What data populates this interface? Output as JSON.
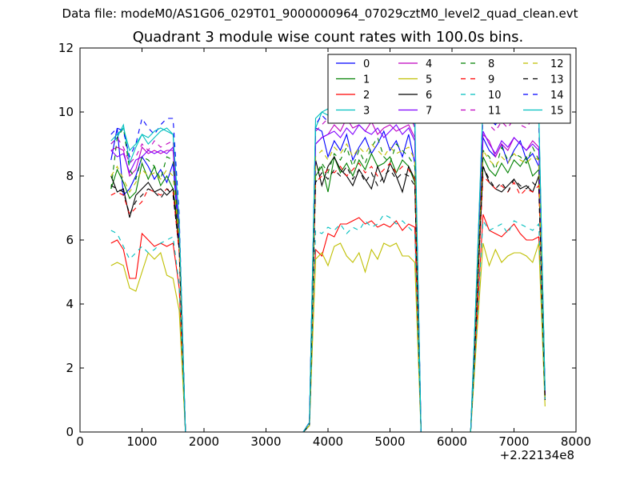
{
  "suptitle": "Data file: modeM0/AS1G06_029T01_9000000964_07029cztM0_level2_quad_clean.evt",
  "chart_data": {
    "type": "line",
    "title": "Quadrant 3 module wise count rates with 100.0s bins.",
    "xlabel": "",
    "ylabel": "",
    "x_offset_label": "+2.22134e8",
    "xlim": [
      0,
      8000
    ],
    "ylim": [
      0,
      12
    ],
    "xticks": [
      0,
      1000,
      2000,
      3000,
      4000,
      5000,
      6000,
      7000,
      8000
    ],
    "yticks": [
      0,
      2,
      4,
      6,
      8,
      10,
      12
    ],
    "grid": false,
    "legend_position": "top-right",
    "legend_columns": 4,
    "x": [
      500,
      600,
      700,
      800,
      900,
      1000,
      1100,
      1200,
      1300,
      1400,
      1500,
      1600,
      1700,
      1800,
      1900,
      2000,
      2100,
      2200,
      2300,
      2400,
      2500,
      2600,
      2700,
      2800,
      2900,
      3000,
      3100,
      3200,
      3300,
      3400,
      3500,
      3600,
      3700,
      3800,
      3900,
      4000,
      4100,
      4200,
      4300,
      4400,
      4500,
      4600,
      4700,
      4800,
      4900,
      5000,
      5100,
      5200,
      5300,
      5400,
      5500,
      5600,
      5700,
      5800,
      5900,
      6000,
      6100,
      6200,
      6300,
      6400,
      6500,
      6600,
      6700,
      6800,
      6900,
      7000,
      7100,
      7200,
      7300,
      7400,
      7500
    ],
    "series": [
      {
        "name": "0",
        "color": "#0000ff",
        "dash": "solid",
        "values": [
          8.5,
          9.5,
          7.4,
          7.6,
          8.0,
          8.6,
          8.3,
          7.9,
          8.2,
          7.8,
          8.4,
          6.0,
          0,
          0,
          0,
          0,
          0,
          0,
          0,
          0,
          0,
          0,
          0,
          0,
          0,
          0,
          0,
          0,
          0,
          0,
          0,
          0,
          0.3,
          9.5,
          9.4,
          8.6,
          9.1,
          8.8,
          9.3,
          8.5,
          8.9,
          9.2,
          8.7,
          9.0,
          9.4,
          8.8,
          9.1,
          8.6,
          9.3,
          8.4,
          0,
          0,
          0,
          0,
          0,
          0,
          0,
          0,
          0,
          4.5,
          9.2,
          8.8,
          8.6,
          9.0,
          8.4,
          8.8,
          9.1,
          8.5,
          8.7,
          8.3,
          1.2
        ]
      },
      {
        "name": "1",
        "color": "#008000",
        "dash": "solid",
        "values": [
          7.6,
          8.2,
          7.8,
          7.3,
          7.5,
          8.4,
          7.9,
          8.3,
          7.7,
          8.0,
          7.6,
          6.2,
          0,
          0,
          0,
          0,
          0,
          0,
          0,
          0,
          0,
          0,
          0,
          0,
          0,
          0,
          0,
          0,
          0,
          0,
          0,
          0,
          0.2,
          8.0,
          8.3,
          7.5,
          8.6,
          8.1,
          8.4,
          8.0,
          8.5,
          8.2,
          8.7,
          8.3,
          8.4,
          8.6,
          8.1,
          8.5,
          8.3,
          7.8,
          0,
          0,
          0,
          0,
          0,
          0,
          0,
          0,
          0,
          4.2,
          8.6,
          8.2,
          8.0,
          8.4,
          8.1,
          8.5,
          8.3,
          8.6,
          8.0,
          8.2,
          1.1
        ]
      },
      {
        "name": "2",
        "color": "#ff0000",
        "dash": "solid",
        "values": [
          5.9,
          6.0,
          5.7,
          4.8,
          4.8,
          6.2,
          6.0,
          5.8,
          5.9,
          5.8,
          5.9,
          4.5,
          0,
          0,
          0,
          0,
          0,
          0,
          0,
          0,
          0,
          0,
          0,
          0,
          0,
          0,
          0,
          0,
          0,
          0,
          0,
          0,
          0.2,
          5.7,
          5.5,
          6.2,
          6.1,
          6.5,
          6.5,
          6.6,
          6.7,
          6.5,
          6.6,
          6.4,
          6.5,
          6.4,
          6.6,
          6.3,
          6.5,
          6.4,
          0,
          0,
          0,
          0,
          0,
          0,
          0,
          0,
          0,
          3.4,
          6.8,
          6.3,
          6.2,
          6.1,
          6.3,
          6.5,
          6.2,
          6.0,
          6.0,
          6.1,
          1.0
        ]
      },
      {
        "name": "3",
        "color": "#00bfbf",
        "dash": "solid",
        "values": [
          9.0,
          9.2,
          9.6,
          8.4,
          8.9,
          9.3,
          9.0,
          9.2,
          9.4,
          9.5,
          9.3,
          6.4,
          0,
          0,
          0,
          0,
          0,
          0,
          0,
          0,
          0,
          0,
          0,
          0,
          0,
          0,
          0,
          0,
          0,
          0,
          0,
          0,
          0.3,
          9.5,
          10.0,
          10.1,
          9.8,
          10.0,
          10.2,
          10.0,
          10.1,
          9.9,
          10.3,
          9.8,
          10.7,
          10.0,
          10.2,
          9.9,
          10.1,
          9.6,
          0,
          0,
          0,
          0,
          0,
          0,
          0,
          0,
          0,
          4.8,
          10.2,
          10.0,
          9.8,
          10.1,
          9.9,
          10.4,
          10.2,
          10.0,
          10.3,
          9.9,
          1.3
        ]
      },
      {
        "name": "4",
        "color": "#bf00bf",
        "dash": "solid",
        "values": [
          8.8,
          8.9,
          8.8,
          8.0,
          8.2,
          8.9,
          8.7,
          8.8,
          8.7,
          8.8,
          8.8,
          6.3,
          0,
          0,
          0,
          0,
          0,
          0,
          0,
          0,
          0,
          0,
          0,
          0,
          0,
          0,
          0,
          0,
          0,
          0,
          0,
          0,
          0.3,
          9.0,
          9.2,
          9.3,
          9.6,
          9.4,
          9.8,
          9.5,
          9.6,
          9.4,
          9.7,
          9.3,
          9.5,
          9.6,
          9.4,
          9.5,
          9.6,
          9.2,
          0,
          0,
          0,
          0,
          0,
          0,
          0,
          0,
          0,
          4.6,
          9.3,
          9.1,
          8.6,
          9.0,
          8.8,
          9.2,
          9.0,
          8.8,
          9.1,
          8.9,
          1.2
        ]
      },
      {
        "name": "5",
        "color": "#bfbf00",
        "dash": "solid",
        "values": [
          5.2,
          5.3,
          5.2,
          4.5,
          4.4,
          5.0,
          5.6,
          5.4,
          5.6,
          4.9,
          4.8,
          3.8,
          0,
          0,
          0,
          0,
          0,
          0,
          0,
          0,
          0,
          0,
          0,
          0,
          0,
          0,
          0,
          0,
          0,
          0,
          0,
          0,
          0.2,
          5.4,
          5.6,
          5.2,
          5.8,
          5.9,
          5.5,
          5.3,
          5.6,
          5.0,
          5.7,
          5.4,
          5.9,
          5.8,
          5.9,
          5.5,
          5.5,
          5.3,
          0,
          0,
          0,
          0,
          0,
          0,
          0,
          0,
          0,
          3.0,
          5.9,
          5.2,
          5.7,
          5.3,
          5.5,
          5.6,
          5.6,
          5.5,
          5.3,
          5.9,
          0.8
        ]
      },
      {
        "name": "6",
        "color": "#000000",
        "dash": "solid",
        "values": [
          8.0,
          7.5,
          7.6,
          6.7,
          7.4,
          7.6,
          7.8,
          7.5,
          7.6,
          7.4,
          7.6,
          5.8,
          0,
          0,
          0,
          0,
          0,
          0,
          0,
          0,
          0,
          0,
          0,
          0,
          0,
          0,
          0,
          0,
          0,
          0,
          0,
          0,
          0.2,
          8.5,
          7.7,
          8.3,
          8.6,
          8.2,
          8.0,
          7.7,
          8.2,
          7.9,
          7.6,
          8.3,
          7.8,
          8.4,
          8.0,
          7.5,
          8.3,
          7.9,
          0,
          0,
          0,
          0,
          0,
          0,
          0,
          0,
          0,
          4.0,
          8.3,
          7.8,
          7.6,
          7.5,
          7.7,
          7.9,
          7.6,
          7.7,
          7.5,
          8.0,
          1.0
        ]
      },
      {
        "name": "7",
        "color": "#7f00ff",
        "dash": "solid",
        "values": [
          8.8,
          8.6,
          8.7,
          8.1,
          8.5,
          8.6,
          8.8,
          8.7,
          8.8,
          8.7,
          8.9,
          6.2,
          0,
          0,
          0,
          0,
          0,
          0,
          0,
          0,
          0,
          0,
          0,
          0,
          0,
          0,
          0,
          0,
          0,
          0,
          0,
          0,
          0.3,
          9.0,
          9.2,
          9.3,
          9.4,
          9.2,
          9.5,
          9.3,
          9.6,
          9.4,
          9.3,
          9.5,
          9.2,
          9.4,
          9.6,
          9.3,
          9.5,
          9.1,
          0,
          0,
          0,
          0,
          0,
          0,
          0,
          0,
          0,
          4.6,
          9.4,
          9.0,
          8.7,
          9.1,
          8.9,
          9.2,
          9.0,
          8.8,
          9.0,
          8.8,
          1.2
        ]
      },
      {
        "name": "8",
        "color": "#008000",
        "dash": "dashed",
        "values": [
          7.6,
          9.2,
          9.5,
          8.2,
          7.9,
          8.6,
          8.5,
          8.3,
          7.9,
          8.6,
          8.5,
          6.2,
          0,
          0,
          0,
          0,
          0,
          0,
          0,
          0,
          0,
          0,
          0,
          0,
          0,
          0,
          0,
          0,
          0,
          0,
          0,
          0,
          0.2,
          8.0,
          8.4,
          8.1,
          8.7,
          8.5,
          8.9,
          8.3,
          8.8,
          8.4,
          8.9,
          9.2,
          8.6,
          8.4,
          9.0,
          8.8,
          8.6,
          8.3,
          0,
          0,
          0,
          0,
          0,
          0,
          0,
          0,
          0,
          4.3,
          8.8,
          8.6,
          8.2,
          8.9,
          8.5,
          8.7,
          8.6,
          8.4,
          8.9,
          8.5,
          1.1
        ]
      },
      {
        "name": "9",
        "color": "#ff0000",
        "dash": "dashed",
        "values": [
          7.4,
          7.5,
          7.4,
          6.8,
          7.0,
          7.2,
          7.6,
          7.5,
          7.4,
          7.6,
          7.5,
          5.6,
          0,
          0,
          0,
          0,
          0,
          0,
          0,
          0,
          0,
          0,
          0,
          0,
          0,
          0,
          0,
          0,
          0,
          0,
          0,
          0,
          0.2,
          7.8,
          8.0,
          8.2,
          8.1,
          8.3,
          8.0,
          8.2,
          8.4,
          8.1,
          8.3,
          8.0,
          8.2,
          8.4,
          8.1,
          8.3,
          8.2,
          7.9,
          0,
          0,
          0,
          0,
          0,
          0,
          0,
          0,
          0,
          3.9,
          8.0,
          7.8,
          7.6,
          7.7,
          7.5,
          7.8,
          7.4,
          7.6,
          7.5,
          7.7,
          1.0
        ]
      },
      {
        "name": "10",
        "color": "#00bfbf",
        "dash": "dashed",
        "values": [
          6.3,
          6.2,
          5.8,
          5.4,
          5.6,
          5.8,
          5.6,
          5.7,
          5.9,
          6.0,
          6.1,
          4.6,
          0,
          0,
          0,
          0,
          0,
          0,
          0,
          0,
          0,
          0,
          0,
          0,
          0,
          0,
          0,
          0,
          0,
          0,
          0,
          0,
          0.2,
          6.3,
          6.2,
          6.4,
          6.3,
          6.5,
          6.2,
          6.4,
          6.3,
          6.6,
          6.4,
          6.5,
          6.8,
          6.7,
          6.5,
          6.6,
          6.4,
          6.2,
          0,
          0,
          0,
          0,
          0,
          0,
          0,
          0,
          0,
          3.3,
          6.6,
          6.3,
          6.4,
          6.5,
          6.2,
          6.6,
          6.5,
          6.4,
          6.3,
          6.5,
          1.0
        ]
      },
      {
        "name": "11",
        "color": "#bf00bf",
        "dash": "dashed",
        "values": [
          9.0,
          9.2,
          8.9,
          8.4,
          8.6,
          9.0,
          8.8,
          9.1,
          8.9,
          9.0,
          9.1,
          6.5,
          0,
          0,
          0,
          0,
          0,
          0,
          0,
          0,
          0,
          0,
          0,
          0,
          0,
          0,
          0,
          0,
          0,
          0,
          0,
          0,
          0.3,
          9.4,
          9.6,
          9.8,
          9.7,
          9.9,
          9.6,
          10.0,
          9.8,
          9.9,
          10.6,
          9.7,
          10.1,
          9.8,
          9.9,
          9.7,
          10.0,
          9.5,
          0,
          0,
          0,
          0,
          0,
          0,
          0,
          0,
          0,
          4.7,
          9.9,
          9.6,
          9.4,
          9.7,
          9.5,
          9.8,
          9.6,
          9.5,
          9.8,
          9.6,
          1.3
        ]
      },
      {
        "name": "12",
        "color": "#bfbf00",
        "dash": "dashed",
        "values": [
          8.0,
          8.3,
          7.9,
          7.5,
          7.8,
          8.2,
          8.0,
          8.1,
          7.9,
          8.2,
          8.0,
          6.0,
          0,
          0,
          0,
          0,
          0,
          0,
          0,
          0,
          0,
          0,
          0,
          0,
          0,
          0,
          0,
          0,
          0,
          0,
          0,
          0,
          0.2,
          8.6,
          8.8,
          8.5,
          8.9,
          8.7,
          9.0,
          8.6,
          8.9,
          8.7,
          9.0,
          8.8,
          8.6,
          8.9,
          8.7,
          8.8,
          8.9,
          8.5,
          0,
          0,
          0,
          0,
          0,
          0,
          0,
          0,
          0,
          4.3,
          8.8,
          8.5,
          8.3,
          8.6,
          8.4,
          8.7,
          8.5,
          8.4,
          8.6,
          8.5,
          1.1
        ]
      },
      {
        "name": "13",
        "color": "#000000",
        "dash": "dashed",
        "values": [
          7.7,
          7.6,
          7.5,
          6.8,
          7.2,
          7.4,
          7.6,
          7.5,
          7.3,
          7.6,
          7.4,
          5.7,
          0,
          0,
          0,
          0,
          0,
          0,
          0,
          0,
          0,
          0,
          0,
          0,
          0,
          0,
          0,
          0,
          0,
          0,
          0,
          0,
          0.2,
          7.8,
          8.1,
          7.9,
          8.2,
          8.0,
          8.3,
          7.9,
          8.2,
          7.8,
          8.1,
          7.7,
          8.0,
          8.2,
          7.9,
          8.1,
          8.0,
          7.7,
          0,
          0,
          0,
          0,
          0,
          0,
          0,
          0,
          0,
          3.9,
          8.3,
          7.9,
          7.6,
          7.8,
          7.5,
          7.9,
          7.7,
          7.6,
          7.8,
          7.6,
          1.0
        ]
      },
      {
        "name": "14",
        "color": "#0000ff",
        "dash": "dashed",
        "values": [
          9.3,
          9.5,
          9.4,
          8.6,
          9.0,
          9.8,
          9.5,
          9.3,
          9.6,
          9.8,
          9.8,
          6.8,
          0,
          0,
          0,
          0,
          0,
          0,
          0,
          0,
          0,
          0,
          0,
          0,
          0,
          0,
          0,
          0,
          0,
          0,
          0,
          0,
          0.3,
          9.6,
          9.9,
          9.7,
          10.0,
          9.8,
          10.1,
          9.9,
          10.2,
          10.0,
          10.4,
          9.9,
          10.6,
          10.0,
          10.2,
          9.8,
          10.1,
          9.7,
          0,
          0,
          0,
          0,
          0,
          0,
          0,
          0,
          0,
          4.8,
          10.1,
          9.8,
          9.6,
          9.9,
          9.7,
          10.0,
          9.8,
          9.7,
          9.9,
          9.8,
          1.3
        ]
      },
      {
        "name": "15",
        "color": "#00bfbf",
        "dash": "solid",
        "values": [
          9.1,
          9.3,
          9.5,
          8.8,
          9.0,
          9.3,
          9.2,
          9.4,
          9.5,
          9.4,
          9.3,
          6.6,
          0,
          0,
          0,
          0,
          0,
          0,
          0,
          0,
          0,
          0,
          0,
          0,
          0,
          0,
          0,
          0,
          0,
          0,
          0,
          0,
          0.3,
          9.8,
          10.0,
          9.9,
          10.2,
          10.0,
          10.3,
          10.1,
          10.2,
          10.0,
          10.4,
          10.1,
          10.3,
          10.0,
          10.2,
          10.1,
          10.3,
          9.9,
          0,
          0,
          0,
          0,
          0,
          0,
          0,
          0,
          0,
          4.9,
          10.3,
          10.0,
          9.8,
          10.1,
          9.9,
          10.2,
          10.0,
          9.9,
          10.2,
          10.0,
          1.3
        ]
      }
    ]
  }
}
